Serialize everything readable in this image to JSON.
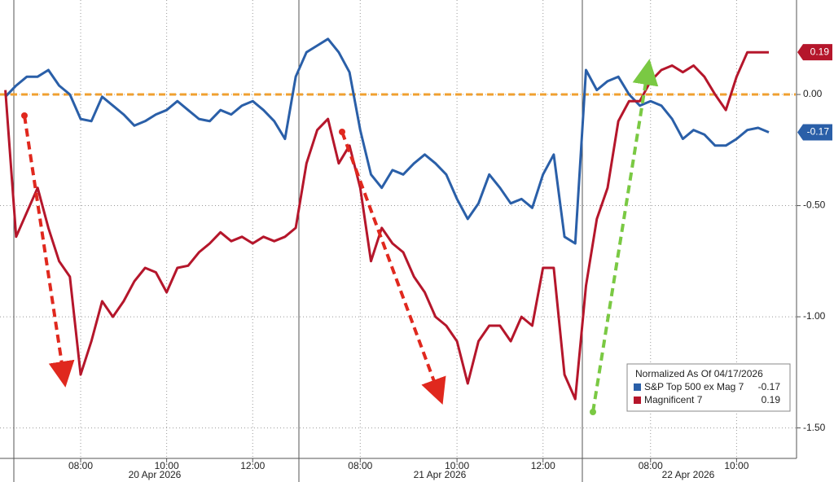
{
  "chart_data": {
    "type": "line",
    "categories": [
      null,
      null,
      null,
      null,
      null,
      null,
      null,
      "08:00",
      null,
      null,
      null,
      null,
      null,
      null,
      null,
      "10:00",
      null,
      null,
      null,
      null,
      null,
      null,
      null,
      "12:00",
      null,
      null,
      null,
      null,
      null,
      null,
      null,
      null,
      null,
      "08:00",
      null,
      null,
      null,
      null,
      null,
      null,
      null,
      null,
      "10:00",
      null,
      null,
      null,
      null,
      null,
      null,
      null,
      "12:00",
      null,
      null,
      null,
      null,
      null,
      null,
      null,
      null,
      null,
      "08:00",
      null,
      null,
      null,
      null,
      null,
      null,
      null,
      "10:00",
      null,
      null,
      null,
      null,
      null
    ],
    "x_groups": [
      "20 Apr 2026",
      "21 Apr 2026",
      "22 Apr 2026"
    ],
    "legend_title": "Normalized As Of 04/17/2026",
    "series": [
      {
        "name": "S&P Top 500 ex Mag 7",
        "color": "#2a5fa8",
        "last_label": "-0.17",
        "values": [
          -0.01,
          0.04,
          0.08,
          0.08,
          0.11,
          0.04,
          0.0,
          -0.11,
          -0.12,
          -0.01,
          -0.05,
          -0.09,
          -0.14,
          -0.12,
          -0.09,
          -0.07,
          -0.03,
          -0.07,
          -0.11,
          -0.12,
          -0.07,
          -0.09,
          -0.05,
          -0.03,
          -0.07,
          -0.12,
          -0.2,
          0.08,
          0.19,
          0.22,
          0.25,
          0.19,
          0.1,
          -0.16,
          -0.36,
          -0.42,
          -0.34,
          -0.36,
          -0.31,
          -0.27,
          -0.31,
          -0.36,
          -0.47,
          -0.56,
          -0.49,
          -0.36,
          -0.42,
          -0.49,
          -0.47,
          -0.51,
          -0.36,
          -0.27,
          -0.64,
          -0.67,
          0.11,
          0.02,
          0.06,
          0.08,
          0.0,
          -0.05,
          -0.03,
          -0.05,
          -0.11,
          -0.2,
          -0.16,
          -0.18,
          -0.23,
          -0.23,
          -0.2,
          -0.16,
          -0.15,
          -0.17,
          null,
          null
        ]
      },
      {
        "name": "Magnificent 7",
        "color": "#b5162b",
        "last_label": "0.19",
        "values": [
          0.02,
          -0.64,
          -0.53,
          -0.42,
          -0.6,
          -0.75,
          -0.82,
          -1.26,
          -1.11,
          -0.93,
          -1.0,
          -0.93,
          -0.84,
          -0.78,
          -0.8,
          -0.89,
          -0.78,
          -0.77,
          -0.71,
          -0.67,
          -0.62,
          -0.66,
          -0.64,
          -0.67,
          -0.64,
          -0.66,
          -0.64,
          -0.6,
          -0.31,
          -0.16,
          -0.11,
          -0.31,
          -0.23,
          -0.42,
          -0.75,
          -0.6,
          -0.67,
          -0.71,
          -0.82,
          -0.89,
          -1.0,
          -1.04,
          -1.11,
          -1.3,
          -1.11,
          -1.04,
          -1.04,
          -1.11,
          -1.0,
          -1.04,
          -0.78,
          -0.78,
          -1.26,
          -1.37,
          -0.86,
          -0.56,
          -0.42,
          -0.12,
          -0.03,
          -0.03,
          0.06,
          0.11,
          0.13,
          0.1,
          0.13,
          0.08,
          0.0,
          -0.07,
          0.08,
          0.19,
          0.19,
          0.19,
          null,
          null
        ]
      }
    ],
    "ylim": [
      -1.637,
      0.425
    ],
    "yticks": [
      {
        "value": -1.5,
        "label": "-1.50"
      },
      {
        "value": -1.0,
        "label": "-1.00"
      },
      {
        "value": -0.5,
        "label": "-0.50"
      },
      {
        "value": 0,
        "label": "0.00"
      }
    ],
    "reference_line": {
      "value": 0,
      "color": "#f0a030"
    },
    "grid": true
  }
}
